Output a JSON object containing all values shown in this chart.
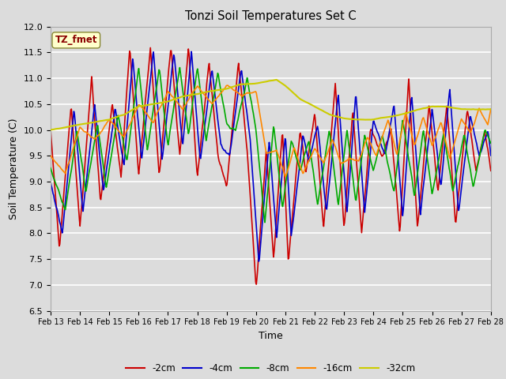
{
  "title": "Tonzi Soil Temperatures Set C",
  "xlabel": "Time",
  "ylabel": "Soil Temperature (C)",
  "ylim": [
    6.5,
    12.0
  ],
  "annotation": "TZ_fmet",
  "annotation_color": "#8B0000",
  "annotation_bg": "#FFFFCC",
  "bg_color": "#DCDCDC",
  "grid_color": "white",
  "xtick_labels": [
    "Feb 13",
    "Feb 14",
    "Feb 15",
    "Feb 16",
    "Feb 17",
    "Feb 18",
    "Feb 19",
    "Feb 20",
    "Feb 21",
    "Feb 22",
    "Feb 23",
    "Feb 24",
    "Feb 25",
    "Feb 26",
    "Feb 27",
    "Feb 28"
  ],
  "series": {
    "-2cm": {
      "color": "#CC0000",
      "linewidth": 1.2
    },
    "-4cm": {
      "color": "#0000CC",
      "linewidth": 1.2
    },
    "-8cm": {
      "color": "#00AA00",
      "linewidth": 1.2
    },
    "-16cm": {
      "color": "#FF8800",
      "linewidth": 1.2
    },
    "-32cm": {
      "color": "#CCCC00",
      "linewidth": 1.5
    }
  }
}
